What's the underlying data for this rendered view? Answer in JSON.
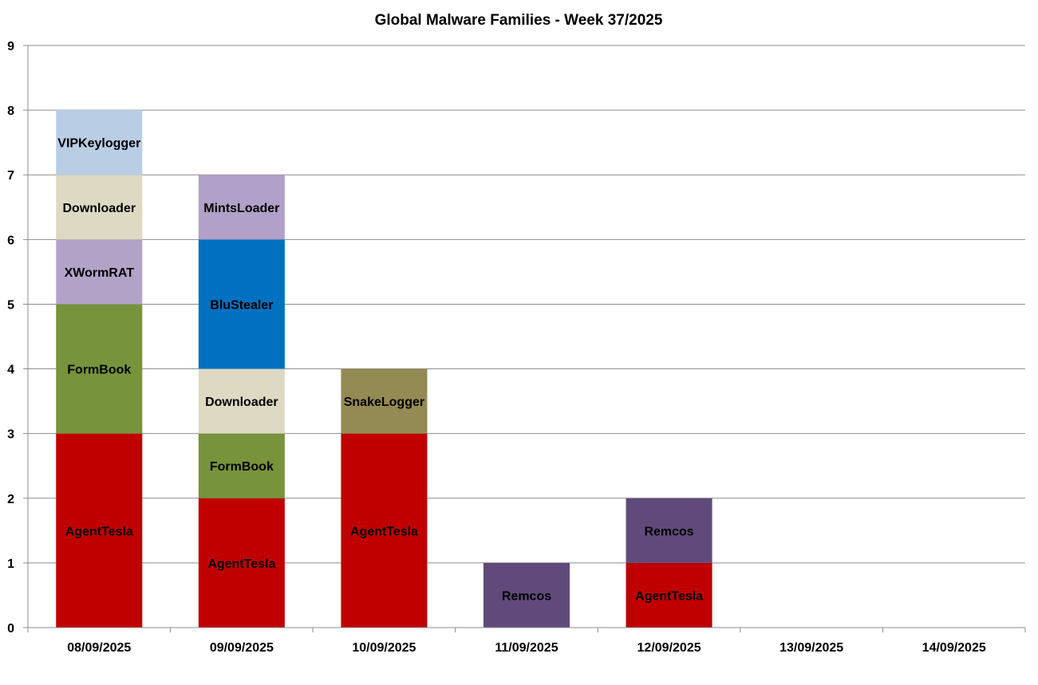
{
  "chart_data": {
    "type": "bar",
    "stacked": true,
    "title": "Global Malware Families - Week 37/2025",
    "xlabel": "",
    "ylabel": "",
    "ylim": [
      0,
      9
    ],
    "yticks": [
      "0",
      "1",
      "2",
      "3",
      "4",
      "5",
      "6",
      "7",
      "8",
      "9"
    ],
    "grid": true,
    "legend": "none",
    "categories": [
      "08/09/2025",
      "09/09/2025",
      "10/09/2025",
      "11/09/2025",
      "12/09/2025",
      "13/09/2025",
      "14/09/2025"
    ],
    "stacks": [
      [
        {
          "name": "AgentTesla",
          "value": 3,
          "color": "#c00000"
        },
        {
          "name": "FormBook",
          "value": 2,
          "color": "#77933c"
        },
        {
          "name": "XWormRAT",
          "value": 1,
          "color": "#b3a2c7"
        },
        {
          "name": "Downloader",
          "value": 1,
          "color": "#ddd9c3"
        },
        {
          "name": "VIPKeylogger",
          "value": 1,
          "color": "#b9cde5"
        }
      ],
      [
        {
          "name": "AgentTesla",
          "value": 2,
          "color": "#c00000"
        },
        {
          "name": "FormBook",
          "value": 1,
          "color": "#77933c"
        },
        {
          "name": "Downloader",
          "value": 1,
          "color": "#ddd9c3"
        },
        {
          "name": "BluStealer",
          "value": 2,
          "color": "#0070c0"
        },
        {
          "name": "MintsLoader",
          "value": 1,
          "color": "#b1a0c7"
        }
      ],
      [
        {
          "name": "AgentTesla",
          "value": 3,
          "color": "#c00000"
        },
        {
          "name": "SnakeLogger",
          "value": 1,
          "color": "#948a54"
        }
      ],
      [
        {
          "name": "Remcos",
          "value": 1,
          "color": "#604a7b"
        }
      ],
      [
        {
          "name": "AgentTesla",
          "value": 1,
          "color": "#c00000"
        },
        {
          "name": "Remcos",
          "value": 1,
          "color": "#604a7b"
        }
      ],
      [],
      []
    ]
  }
}
